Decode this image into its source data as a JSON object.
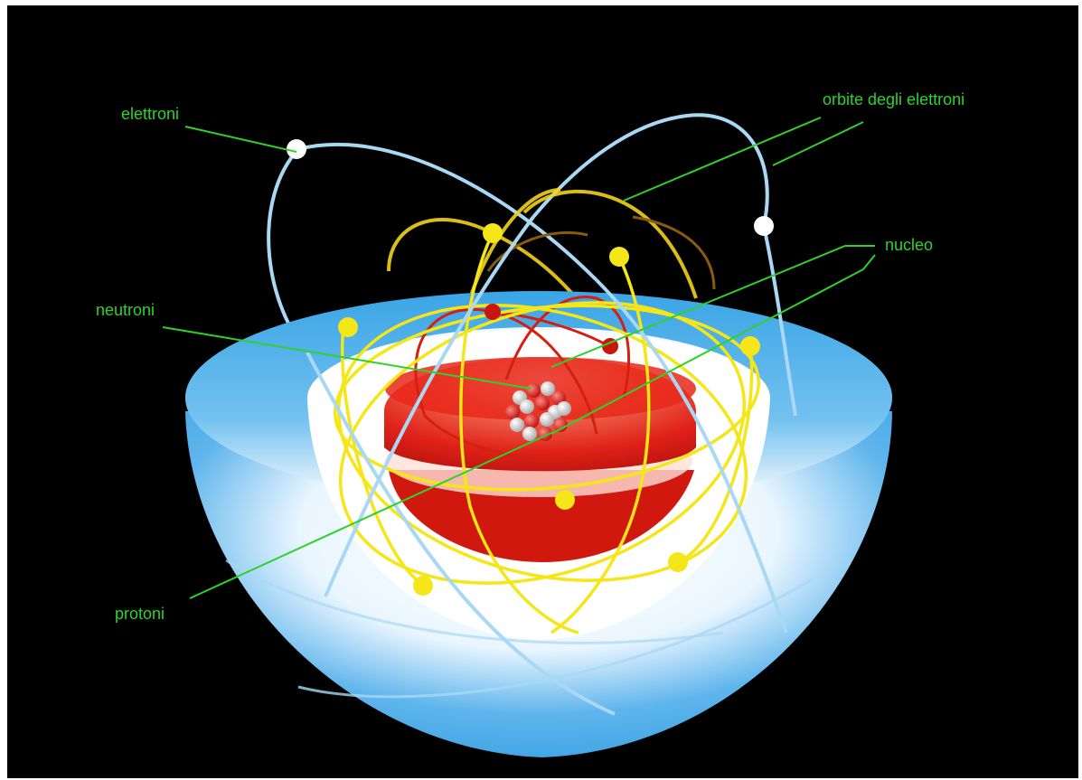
{
  "diagram": {
    "labels": {
      "electrons": "elettroni",
      "orbits": "orbite degli elettroni",
      "nucleus": "nucleo",
      "neutrons": "neutroni",
      "protons": "protoni"
    },
    "colors": {
      "background": "#000000",
      "label_text": "#2fd12b",
      "leader_lines": "#2fd12b",
      "outer_shell": "#2d9be0",
      "outer_orbits": "#a9d8f5",
      "middle_orbits": "#f2e21a",
      "inner_orbits": "#d42010",
      "nucleus_core": "#e8281a",
      "electron_outer": "#ffffff",
      "electron_middle": "#f5e617",
      "electron_inner": "#c8160c"
    }
  }
}
